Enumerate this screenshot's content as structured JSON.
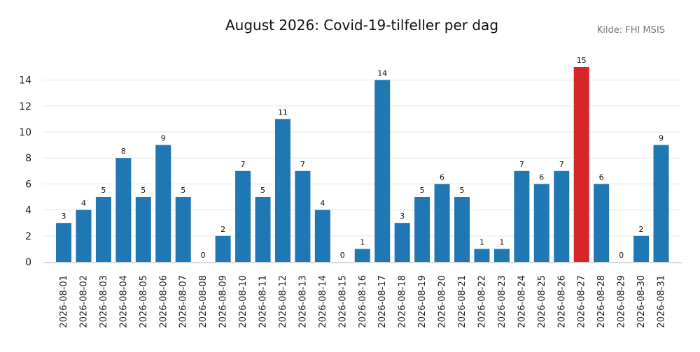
{
  "chart_data": {
    "type": "bar",
    "title": "August 2026: Covid-19-tilfeller per dag",
    "source": "Kilde: FHI MSIS",
    "xlabel": "",
    "ylabel": "",
    "ylim": [
      0,
      16
    ],
    "yticks": [
      0,
      2,
      4,
      6,
      8,
      10,
      12,
      14
    ],
    "grid": "horizontal",
    "colors": {
      "bar": "#1f77b4",
      "highlight": "#d62728"
    },
    "highlight_category": "2026-08-27",
    "categories": [
      "2026-08-01",
      "2026-08-02",
      "2026-08-03",
      "2026-08-04",
      "2026-08-05",
      "2026-08-06",
      "2026-08-07",
      "2026-08-08",
      "2026-08-09",
      "2026-08-10",
      "2026-08-11",
      "2026-08-12",
      "2026-08-13",
      "2026-08-14",
      "2026-08-15",
      "2026-08-16",
      "2026-08-17",
      "2026-08-18",
      "2026-08-19",
      "2026-08-20",
      "2026-08-21",
      "2026-08-22",
      "2026-08-23",
      "2026-08-24",
      "2026-08-25",
      "2026-08-26",
      "2026-08-27",
      "2026-08-28",
      "2026-08-29",
      "2026-08-30",
      "2026-08-31"
    ],
    "values": [
      3,
      4,
      5,
      8,
      5,
      9,
      5,
      0,
      2,
      7,
      5,
      11,
      7,
      4,
      0,
      1,
      14,
      3,
      5,
      6,
      5,
      1,
      1,
      7,
      6,
      7,
      15,
      6,
      0,
      2,
      9
    ]
  }
}
